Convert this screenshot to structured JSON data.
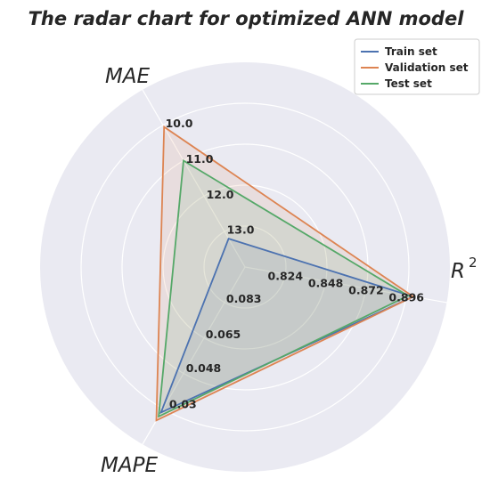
{
  "chart_data": {
    "type": "radar",
    "title": "The radar chart for optimized ANN model",
    "axes": [
      {
        "label": "R",
        "superscript": "2",
        "ticks": [
          "0.824",
          "0.848",
          "0.872",
          "0.896"
        ],
        "tick_values": [
          0.824,
          0.848,
          0.872,
          0.896
        ],
        "range": [
          0.8,
          0.92
        ]
      },
      {
        "label": "MAE",
        "superscript": "",
        "ticks": [
          "13.0",
          "12.0",
          "11.0",
          "10.0"
        ],
        "tick_values": [
          13.0,
          12.0,
          11.0,
          10.0
        ],
        "range": [
          14.0,
          9.0
        ]
      },
      {
        "label": "MAPE",
        "superscript": "",
        "ticks": [
          "0.083",
          "0.065",
          "0.048",
          "0.03"
        ],
        "tick_values": [
          0.083,
          0.065,
          0.048,
          0.03
        ],
        "range": [
          0.101,
          0.012
        ]
      }
    ],
    "series": [
      {
        "name": "Train set",
        "color": "#4c72b0",
        "values": [
          0.9,
          13.2,
          0.028
        ]
      },
      {
        "name": "Validation set",
        "color": "#dd8452",
        "values": [
          0.9,
          10.05,
          0.024
        ]
      },
      {
        "name": "Test set",
        "color": "#55a868",
        "values": [
          0.897,
          11.0,
          0.026
        ]
      }
    ],
    "legend_position": "top-right",
    "grid": true
  }
}
